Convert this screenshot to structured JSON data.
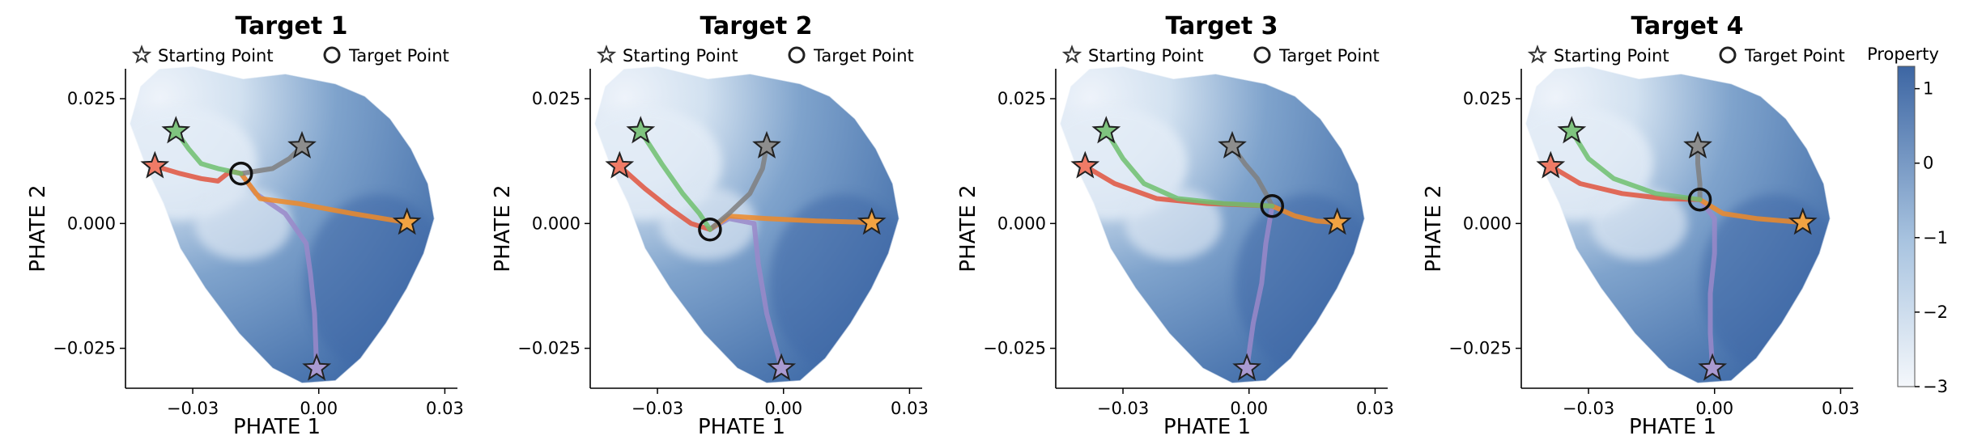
{
  "chart_data": {
    "type": "scatter",
    "colorbar": {
      "label": "Property",
      "ticks": [
        "1",
        "0",
        "−1",
        "−2",
        "−3"
      ],
      "range": [
        -3,
        1.3
      ],
      "colors": [
        "#f4f7fb",
        "#3d66a3"
      ]
    },
    "xticks": [
      -0.03,
      0.0,
      0.03
    ],
    "xtick_labels": [
      "−0.03",
      "0.00",
      "0.03"
    ],
    "yticks": [
      0.025,
      0.0,
      -0.025
    ],
    "ytick_labels": [
      "0.025",
      "0.000",
      "−0.025"
    ],
    "xlim": [
      -0.046,
      0.033
    ],
    "ylim": [
      -0.033,
      0.031
    ],
    "xlabel": "PHATE 1",
    "ylabel": "PHATE 2",
    "legend": {
      "start_label": "Starting Point",
      "target_label": "Target Point",
      "placement": "top"
    },
    "start_points": [
      {
        "name": "green",
        "color": "#7fc47f",
        "x": -0.034,
        "y": 0.0185
      },
      {
        "name": "gray",
        "color": "#8d8d8d",
        "x": -0.004,
        "y": 0.0155
      },
      {
        "name": "red",
        "color": "#ef7b66",
        "x": -0.039,
        "y": 0.0115
      },
      {
        "name": "orange",
        "color": "#f2a342",
        "x": 0.021,
        "y": 0.0002
      },
      {
        "name": "purple",
        "color": "#a99ad1",
        "x": -0.0005,
        "y": -0.029
      }
    ],
    "path_colors": {
      "green": "#6fbf6f",
      "gray": "#7f7f7f",
      "red": "#e0533d",
      "orange": "#ee8a28",
      "purple": "#9a88c9"
    },
    "panels": [
      {
        "title": "Target 1",
        "target": {
          "x": -0.0185,
          "y": 0.01
        },
        "paths": {
          "green": [
            [
              -0.034,
              0.0185
            ],
            [
              -0.031,
              0.015
            ],
            [
              -0.028,
              0.012
            ],
            [
              -0.024,
              0.011
            ],
            [
              -0.0185,
              0.01
            ]
          ],
          "gray": [
            [
              -0.004,
              0.0155
            ],
            [
              -0.007,
              0.013
            ],
            [
              -0.011,
              0.011
            ],
            [
              -0.0185,
              0.01
            ]
          ],
          "red": [
            [
              -0.039,
              0.0115
            ],
            [
              -0.033,
              0.01
            ],
            [
              -0.028,
              0.009
            ],
            [
              -0.024,
              0.0085
            ],
            [
              -0.021,
              0.0105
            ],
            [
              -0.0185,
              0.01
            ]
          ],
          "orange": [
            [
              -0.0185,
              0.01
            ],
            [
              -0.014,
              0.005
            ],
            [
              -0.005,
              0.004
            ],
            [
              0.008,
              0.002
            ],
            [
              0.021,
              0.0002
            ]
          ],
          "purple": [
            [
              -0.0185,
              0.01
            ],
            [
              -0.015,
              0.006
            ],
            [
              -0.008,
              0.002
            ],
            [
              -0.003,
              -0.004
            ],
            [
              -0.002,
              -0.01
            ],
            [
              -0.001,
              -0.018
            ],
            [
              -0.0005,
              -0.029
            ]
          ]
        }
      },
      {
        "title": "Target 2",
        "target": {
          "x": -0.0175,
          "y": -0.0012
        },
        "paths": {
          "green": [
            [
              -0.034,
              0.0185
            ],
            [
              -0.029,
              0.012
            ],
            [
              -0.024,
              0.006
            ],
            [
              -0.02,
              0.002
            ],
            [
              -0.0175,
              -0.0012
            ]
          ],
          "gray": [
            [
              -0.004,
              0.0155
            ],
            [
              -0.005,
              0.011
            ],
            [
              -0.008,
              0.006
            ],
            [
              -0.013,
              0.002
            ],
            [
              -0.0175,
              -0.0012
            ]
          ],
          "red": [
            [
              -0.039,
              0.0115
            ],
            [
              -0.033,
              0.007
            ],
            [
              -0.027,
              0.003
            ],
            [
              -0.022,
              0.0
            ],
            [
              -0.0175,
              -0.0012
            ]
          ],
          "orange": [
            [
              -0.0175,
              -0.0012
            ],
            [
              -0.013,
              0.0015
            ],
            [
              -0.004,
              0.001
            ],
            [
              0.008,
              0.0005
            ],
            [
              0.021,
              0.0002
            ]
          ],
          "purple": [
            [
              -0.0175,
              -0.0012
            ],
            [
              -0.013,
              0.001
            ],
            [
              -0.007,
              0.0
            ],
            [
              -0.006,
              -0.008
            ],
            [
              -0.004,
              -0.018
            ],
            [
              -0.0005,
              -0.029
            ]
          ]
        }
      },
      {
        "title": "Target 3",
        "target": {
          "x": 0.0055,
          "y": 0.0035
        },
        "paths": {
          "green": [
            [
              -0.034,
              0.0185
            ],
            [
              -0.03,
              0.013
            ],
            [
              -0.025,
              0.008
            ],
            [
              -0.017,
              0.005
            ],
            [
              -0.006,
              0.004
            ],
            [
              0.0055,
              0.0035
            ]
          ],
          "gray": [
            [
              -0.004,
              0.0155
            ],
            [
              -0.001,
              0.012
            ],
            [
              0.002,
              0.009
            ],
            [
              0.004,
              0.006
            ],
            [
              0.0055,
              0.0035
            ]
          ],
          "red": [
            [
              -0.039,
              0.0115
            ],
            [
              -0.032,
              0.008
            ],
            [
              -0.022,
              0.005
            ],
            [
              -0.01,
              0.004
            ],
            [
              0.0055,
              0.0035
            ]
          ],
          "orange": [
            [
              0.0055,
              0.0035
            ],
            [
              0.011,
              0.0015
            ],
            [
              0.016,
              0.0005
            ],
            [
              0.021,
              0.0002
            ]
          ],
          "purple": [
            [
              0.0055,
              0.0035
            ],
            [
              0.004,
              -0.004
            ],
            [
              0.003,
              -0.012
            ],
            [
              0.001,
              -0.02
            ],
            [
              -0.0005,
              -0.029
            ]
          ]
        }
      },
      {
        "title": "Target 4",
        "target": {
          "x": -0.0035,
          "y": 0.0048
        },
        "paths": {
          "green": [
            [
              -0.034,
              0.0185
            ],
            [
              -0.03,
              0.013
            ],
            [
              -0.024,
              0.009
            ],
            [
              -0.014,
              0.006
            ],
            [
              -0.0035,
              0.0048
            ]
          ],
          "gray": [
            [
              -0.004,
              0.0155
            ],
            [
              -0.004,
              0.012
            ],
            [
              -0.0035,
              0.008
            ],
            [
              -0.0035,
              0.0048
            ]
          ],
          "red": [
            [
              -0.039,
              0.0115
            ],
            [
              -0.032,
              0.008
            ],
            [
              -0.022,
              0.006
            ],
            [
              -0.012,
              0.005
            ],
            [
              -0.0035,
              0.0048
            ]
          ],
          "orange": [
            [
              -0.0035,
              0.0048
            ],
            [
              0.002,
              0.002
            ],
            [
              0.01,
              0.001
            ],
            [
              0.021,
              0.0002
            ]
          ],
          "purple": [
            [
              -0.0035,
              0.0048
            ],
            [
              0.0,
              0.001
            ],
            [
              0.0,
              -0.006
            ],
            [
              -0.001,
              -0.014
            ],
            [
              -0.001,
              -0.022
            ],
            [
              -0.0005,
              -0.029
            ]
          ]
        }
      }
    ]
  }
}
